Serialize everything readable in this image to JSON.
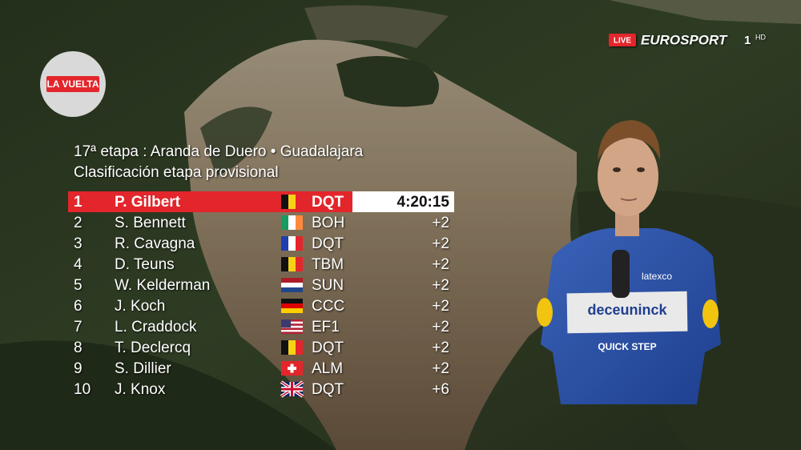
{
  "logo": "LA VUELTA",
  "broadcast": {
    "live": "LIVE",
    "channel": "EUROSPORT",
    "number": "1",
    "quality": "HD"
  },
  "header": {
    "title": "17ª etapa : Aranda de Duero • Guadalajara",
    "subtitle": "Clasificación etapa provisional"
  },
  "table": {
    "rows": [
      [
        "1",
        "P. Gilbert",
        "DQT",
        "4:20:15"
      ],
      [
        "2",
        "S. Bennett",
        "BOH",
        "+2"
      ],
      [
        "3",
        "R. Cavagna",
        "DQT",
        "+2"
      ],
      [
        "4",
        "D. Teuns",
        "TBM",
        "+2"
      ],
      [
        "5",
        "W. Kelderman",
        "SUN",
        "+2"
      ],
      [
        "6",
        "J. Koch",
        "CCC",
        "+2"
      ],
      [
        "7",
        "L. Craddock",
        "EF1",
        "+2"
      ],
      [
        "8",
        "T. Declercq",
        "DQT",
        "+2"
      ],
      [
        "9",
        "S. Dillier",
        "ALM",
        "+2"
      ],
      [
        "10",
        "J. Knox",
        "DQT",
        "+6"
      ]
    ]
  },
  "jersey": {
    "sponsor": "deceuninck",
    "team": "QUICK STEP",
    "chest": "latexco"
  }
}
